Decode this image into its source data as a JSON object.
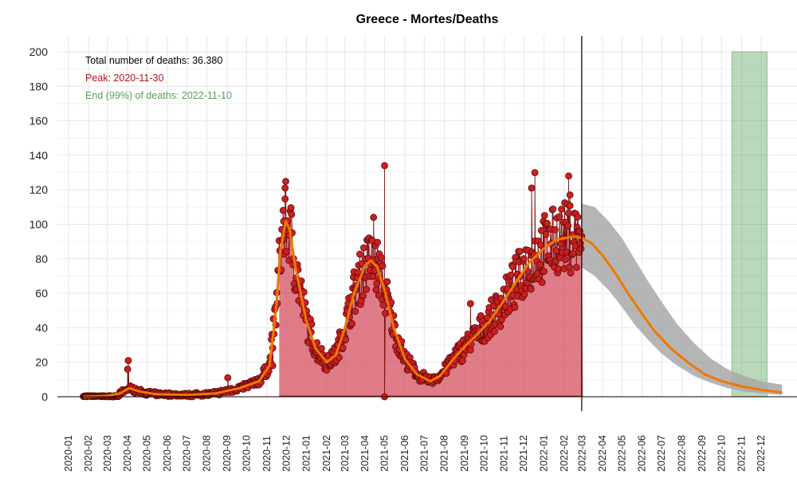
{
  "chart_data": {
    "type": "line",
    "title": "Greece - Mortes/Deaths",
    "xlabel": "",
    "ylabel": "",
    "x_range": [
      "2019-12-15",
      "2023-01-25"
    ],
    "ylim": [
      0,
      200
    ],
    "y_ticks": [
      0,
      20,
      40,
      60,
      80,
      100,
      120,
      140,
      160,
      180,
      200
    ],
    "x_ticks": [
      "2020-01",
      "2020-02",
      "2020-03",
      "2020-04",
      "2020-05",
      "2020-06",
      "2020-07",
      "2020-08",
      "2020-09",
      "2020-10",
      "2020-11",
      "2020-12",
      "2021-01",
      "2021-02",
      "2021-03",
      "2021-04",
      "2021-05",
      "2021-06",
      "2021-07",
      "2021-08",
      "2021-09",
      "2021-10",
      "2021-11",
      "2021-12",
      "2022-01",
      "2022-02",
      "2022-03",
      "2022-04",
      "2022-05",
      "2022-06",
      "2022-07",
      "2022-08",
      "2022-09",
      "2022-10",
      "2022-11",
      "2022-12"
    ],
    "grid": true,
    "legend": "none",
    "annotations": {
      "total": "Total number of deaths: 36.380",
      "peak": "Peak: 2020-11-30",
      "end": "End (99%) of deaths: 2022-11-10"
    },
    "today_marker_date": "2022-02-28",
    "end_band": [
      "2022-10-17",
      "2022-12-10"
    ],
    "colors": {
      "points": "#cc1f1f",
      "point_outline": "#5a0a0a",
      "fill": "#d24a5a",
      "curve": "#f07800",
      "band": "#a8a8a8",
      "end_band": "#5aa55a",
      "peak_text": "#b3131f",
      "end_text": "#5c9c5c"
    },
    "smoothed_curve": [
      [
        "2020-01-24",
        0
      ],
      [
        "2020-03-01",
        0.5
      ],
      [
        "2020-03-20",
        2
      ],
      [
        "2020-04-03",
        5
      ],
      [
        "2020-04-20",
        3
      ],
      [
        "2020-05-15",
        1.5
      ],
      [
        "2020-07-01",
        1
      ],
      [
        "2020-08-15",
        2
      ],
      [
        "2020-09-20",
        5
      ],
      [
        "2020-10-20",
        9
      ],
      [
        "2020-11-05",
        18
      ],
      [
        "2020-11-15",
        50
      ],
      [
        "2020-11-22",
        85
      ],
      [
        "2020-11-30",
        102
      ],
      [
        "2020-12-06",
        97
      ],
      [
        "2020-12-15",
        75
      ],
      [
        "2020-12-31",
        45
      ],
      [
        "2021-01-15",
        28
      ],
      [
        "2021-02-01",
        20
      ],
      [
        "2021-02-15",
        24
      ],
      [
        "2021-03-01",
        40
      ],
      [
        "2021-03-15",
        60
      ],
      [
        "2021-04-01",
        76
      ],
      [
        "2021-04-10",
        79
      ],
      [
        "2021-04-20",
        75
      ],
      [
        "2021-05-01",
        62
      ],
      [
        "2021-05-15",
        40
      ],
      [
        "2021-06-01",
        22
      ],
      [
        "2021-06-20",
        13
      ],
      [
        "2021-07-10",
        9
      ],
      [
        "2021-07-25",
        12
      ],
      [
        "2021-08-15",
        22
      ],
      [
        "2021-09-01",
        29
      ],
      [
        "2021-09-20",
        36
      ],
      [
        "2021-10-10",
        44
      ],
      [
        "2021-11-01",
        56
      ],
      [
        "2021-11-20",
        67
      ],
      [
        "2021-12-10",
        78
      ],
      [
        "2022-01-01",
        86
      ],
      [
        "2022-01-20",
        91
      ],
      [
        "2022-02-15",
        93
      ],
      [
        "2022-03-01",
        92
      ],
      [
        "2022-03-15",
        89
      ],
      [
        "2022-04-01",
        82
      ],
      [
        "2022-04-20",
        72
      ],
      [
        "2022-05-10",
        60
      ],
      [
        "2022-06-01",
        48
      ],
      [
        "2022-06-20",
        38
      ],
      [
        "2022-07-15",
        28
      ],
      [
        "2022-08-10",
        20
      ],
      [
        "2022-09-05",
        13
      ],
      [
        "2022-10-01",
        9
      ],
      [
        "2022-11-01",
        6
      ],
      [
        "2022-12-01",
        4
      ],
      [
        "2023-01-02",
        2.5
      ]
    ],
    "forecast_band": [
      [
        "2022-02-28",
        75,
        112
      ],
      [
        "2022-03-20",
        70,
        110
      ],
      [
        "2022-04-10",
        62,
        102
      ],
      [
        "2022-05-01",
        52,
        92
      ],
      [
        "2022-05-20",
        42,
        80
      ],
      [
        "2022-06-10",
        33,
        67
      ],
      [
        "2022-07-01",
        25,
        55
      ],
      [
        "2022-07-25",
        18,
        42
      ],
      [
        "2022-08-20",
        12,
        31
      ],
      [
        "2022-09-15",
        8,
        22
      ],
      [
        "2022-10-10",
        5,
        16
      ],
      [
        "2022-11-05",
        3,
        12
      ],
      [
        "2022-12-01",
        2,
        9
      ],
      [
        "2023-01-02",
        1,
        7
      ]
    ],
    "daily_observed_highlights": [
      [
        "2020-04-02",
        21
      ],
      [
        "2020-04-01",
        16
      ],
      [
        "2020-11-29",
        121
      ],
      [
        "2020-11-26",
        108
      ],
      [
        "2021-04-14",
        104
      ],
      [
        "2021-05-01",
        134
      ],
      [
        "2021-05-01",
        0
      ],
      [
        "2021-12-18",
        130
      ],
      [
        "2021-12-13",
        121
      ],
      [
        "2022-02-08",
        128
      ],
      [
        "2022-02-10",
        117
      ],
      [
        "2021-09-10",
        54
      ],
      [
        "2020-09-02",
        11
      ],
      [
        "2020-11-10",
        18
      ]
    ]
  }
}
